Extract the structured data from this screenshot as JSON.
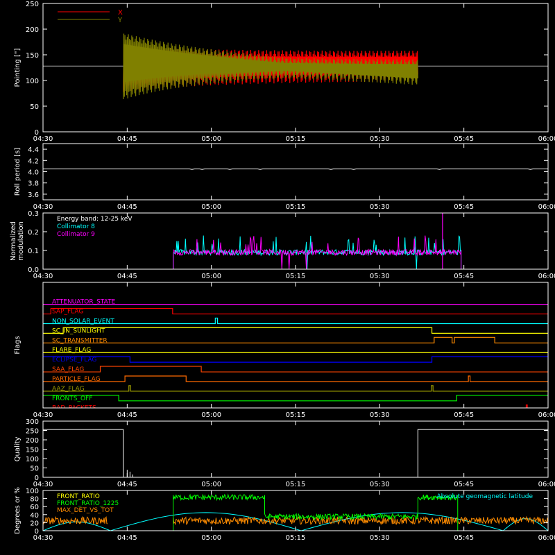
{
  "figure": {
    "background": "#000000",
    "axis_color": "#ffffff"
  },
  "chart_data": [
    {
      "id": "pointing",
      "type": "line",
      "ylabel": "Pointing [\"]",
      "ylim": [
        0,
        250
      ],
      "yticks": [
        0,
        50,
        100,
        150,
        200,
        250
      ],
      "xlim": [
        270,
        360
      ],
      "xticks": [
        "04:30",
        "04:45",
        "05:00",
        "05:15",
        "05:30",
        "05:45",
        "06:00"
      ],
      "xtick_values": [
        270,
        285,
        300,
        315,
        330,
        345,
        360
      ],
      "legend": [
        {
          "label": "X",
          "color": "#ff0000"
        },
        {
          "label": "Y",
          "color": "#808000"
        }
      ],
      "legend_position": "top-left",
      "reference_line": 128,
      "series": [
        {
          "name": "X",
          "color": "#ff0000",
          "start": 284.3,
          "end": 336.8,
          "center": 128,
          "amp_start": 80,
          "amp_end": 40,
          "center_drift": [
            135,
            138
          ]
        },
        {
          "name": "Y",
          "color": "#808000",
          "start": 284.3,
          "end": 336.8,
          "center": 128,
          "amp_start": 105,
          "amp_end": 18,
          "center_drift": [
            150,
            110
          ]
        }
      ]
    },
    {
      "id": "roll",
      "type": "line",
      "ylabel": "Roll period [s]",
      "ylim": [
        3.5,
        4.5
      ],
      "yticks": [
        "3.6",
        "3.8",
        "4.0",
        "4.2",
        "4.4"
      ],
      "ytick_values": [
        3.6,
        3.8,
        4.0,
        4.2,
        4.4
      ],
      "xlim": [
        270,
        360
      ],
      "xticks": [
        "04:30",
        "04:45",
        "05:00",
        "05:15",
        "05:30",
        "05:45",
        "06:00"
      ],
      "xtick_values": [
        270,
        285,
        300,
        315,
        330,
        345,
        360
      ],
      "series": [
        {
          "name": "",
          "color": "#ffffff",
          "value": 4.05
        }
      ]
    },
    {
      "id": "modulation",
      "type": "line",
      "ylabel": [
        "Normalized",
        "modulation"
      ],
      "ylim": [
        0,
        0.3
      ],
      "yticks": [
        "0.0",
        "0.1",
        "0.2",
        "0.3"
      ],
      "ytick_values": [
        0,
        0.1,
        0.2,
        0.3
      ],
      "xlim": [
        270,
        360
      ],
      "xticks": [
        "04:30",
        "04:45",
        "05:00",
        "05:15",
        "05:30",
        "05:45",
        "06:00"
      ],
      "xtick_values": [
        270,
        285,
        300,
        315,
        330,
        345,
        360
      ],
      "legend": [
        {
          "label": "Energy band: 12-25 keV",
          "color": "#ffffff"
        },
        {
          "label": "Collimator 8",
          "color": "#00ffff"
        },
        {
          "label": "Collimator 9",
          "color": "#ff00ff"
        }
      ],
      "legend_position": "top-left",
      "series": [
        {
          "name": "Collimator 8",
          "color": "#00ffff",
          "start": 293.2,
          "end": 344.5,
          "level": 0.09
        },
        {
          "name": "Collimator 9",
          "color": "#ff00ff",
          "start": 293.2,
          "end": 344.5,
          "level": 0.09
        }
      ]
    },
    {
      "id": "flags",
      "type": "line",
      "ylabel": "Flags",
      "xlim": [
        270,
        360
      ],
      "xticks": [
        "04:30",
        "04:45",
        "05:00",
        "05:15",
        "05:30",
        "05:45",
        "06:00"
      ],
      "xtick_values": [
        270,
        285,
        300,
        315,
        330,
        345,
        360
      ],
      "flags": [
        {
          "label": "ATTENUATOR_STATE",
          "color": "#ff00ff",
          "steps": []
        },
        {
          "label": "SAP_FLAG",
          "color": "#ff0000",
          "steps": [
            [
              270,
              0
            ],
            [
              271.4,
              1
            ],
            [
              293.1,
              0
            ]
          ]
        },
        {
          "label": "NON_SOLAR_EVENT",
          "color": "#00ffff",
          "steps": [
            [
              270,
              0
            ],
            [
              300.7,
              1
            ],
            [
              301.1,
              0
            ]
          ]
        },
        {
          "label": "SC_IN_SUNLIGHT",
          "color": "#ffff00",
          "steps": [
            [
              270,
              0
            ],
            [
              273.6,
              1
            ],
            [
              339.3,
              0
            ]
          ]
        },
        {
          "label": "SC_TRANSMITTER",
          "color": "#ff8c00",
          "steps": [
            [
              270,
              0
            ],
            [
              339.7,
              1
            ],
            [
              342.9,
              0
            ],
            [
              343.3,
              1
            ],
            [
              350.5,
              0
            ]
          ]
        },
        {
          "label": "FLARE_FLAG",
          "color": "#ffff00",
          "steps": []
        },
        {
          "label": "ECLIPSE_FLAG",
          "color": "#0000ff",
          "steps": [
            [
              270,
              1
            ],
            [
              285.5,
              0
            ],
            [
              339.3,
              1
            ]
          ]
        },
        {
          "label": "SAA_FLAG",
          "color": "#ff4500",
          "steps": [
            [
              270,
              0
            ],
            [
              280.2,
              1
            ],
            [
              298.2,
              0
            ]
          ]
        },
        {
          "label": "PARTICLE_FLAG",
          "color": "#ff6a00",
          "steps": [
            [
              270,
              0
            ],
            [
              284.6,
              1
            ],
            [
              295.5,
              0
            ],
            [
              345.8,
              1
            ],
            [
              346.1,
              0
            ]
          ]
        },
        {
          "label": "AAZ_FLAG",
          "color": "#9a9a00",
          "steps": [
            [
              270,
              0
            ],
            [
              285.3,
              1
            ],
            [
              285.6,
              0
            ],
            [
              339.2,
              1
            ],
            [
              339.5,
              0
            ]
          ]
        },
        {
          "label": "FRONTS_OFF",
          "color": "#00ff00",
          "steps": [
            [
              270,
              1
            ],
            [
              283.5,
              0
            ],
            [
              343.7,
              1
            ]
          ]
        },
        {
          "label": "BAD_PACKETS",
          "color": "#ff0000",
          "steps": [
            [
              270,
              0
            ],
            [
              356.1,
              1
            ],
            [
              356.3,
              0
            ]
          ]
        }
      ]
    },
    {
      "id": "quality",
      "type": "line",
      "ylabel": "Quality",
      "ylim": [
        0,
        300
      ],
      "yticks": [
        0,
        50,
        100,
        150,
        200,
        250,
        300
      ],
      "xlim": [
        270,
        360
      ],
      "xticks": [
        "04:30",
        "04:45",
        "05:00",
        "05:15",
        "05:30",
        "05:45",
        "06:00"
      ],
      "xtick_values": [
        270,
        285,
        300,
        315,
        330,
        345,
        360
      ],
      "series": [
        {
          "name": "",
          "color": "#ffffff",
          "segments": [
            [
              [
                270,
                255
              ],
              [
                284.3,
                255
              ],
              [
                284.3,
                0
              ]
            ],
            [
              [
                336.8,
                0
              ],
              [
                336.8,
                255
              ],
              [
                360,
                255
              ]
            ]
          ],
          "spikes": [
            [
              285.0,
              40
            ],
            [
              285.5,
              30
            ],
            [
              286.0,
              15
            ]
          ]
        }
      ]
    },
    {
      "id": "fronts",
      "type": "line",
      "ylabel": "Degrees or %",
      "ylim": [
        0,
        100
      ],
      "yticks": [
        0,
        20,
        40,
        60,
        80,
        100
      ],
      "xlim": [
        270,
        360
      ],
      "xticks": [
        "04:30",
        "04:45",
        "05:00",
        "05:15",
        "05:30",
        "05:45",
        "06:00"
      ],
      "xtick_values": [
        270,
        285,
        300,
        315,
        330,
        345,
        360
      ],
      "legend": [
        {
          "label": "FRONT_RATIO",
          "color": "#ffff00"
        },
        {
          "label": "FRONT_RATIO_1225",
          "color": "#00ff00"
        },
        {
          "label": "MAX_DET_VS_TOT",
          "color": "#ff8c00"
        }
      ],
      "legend_position": "top-left",
      "annotation": {
        "label": "Absolute geomagnetic latitude",
        "color": "#00ffff"
      },
      "series": [
        {
          "name": "FRONT_RATIO_1225",
          "color": "#00ff00",
          "segments": [
            [
              293.2,
              309.5,
              83
            ],
            [
              309.5,
              336.8,
              35
            ],
            [
              336.8,
              343.9,
              83
            ]
          ],
          "edge": [
            [
              270,
              0
            ],
            [
              293.2,
              0
            ],
            [
              343.9,
              0
            ],
            [
              360,
              0
            ]
          ]
        },
        {
          "name": "MAX_DET_VS_TOT",
          "color": "#ff8c00",
          "segments": [
            [
              270,
              281.5,
              25
            ],
            [
              293.2,
              360,
              25
            ]
          ]
        },
        {
          "name": "Absolute geomagnetic latitude",
          "color": "#00ffff",
          "arches": [
            [
              270,
              282,
              22
            ],
            [
              282,
              316,
              45
            ],
            [
              316,
              352,
              45
            ],
            [
              352,
              360,
              30
            ]
          ]
        }
      ]
    }
  ]
}
